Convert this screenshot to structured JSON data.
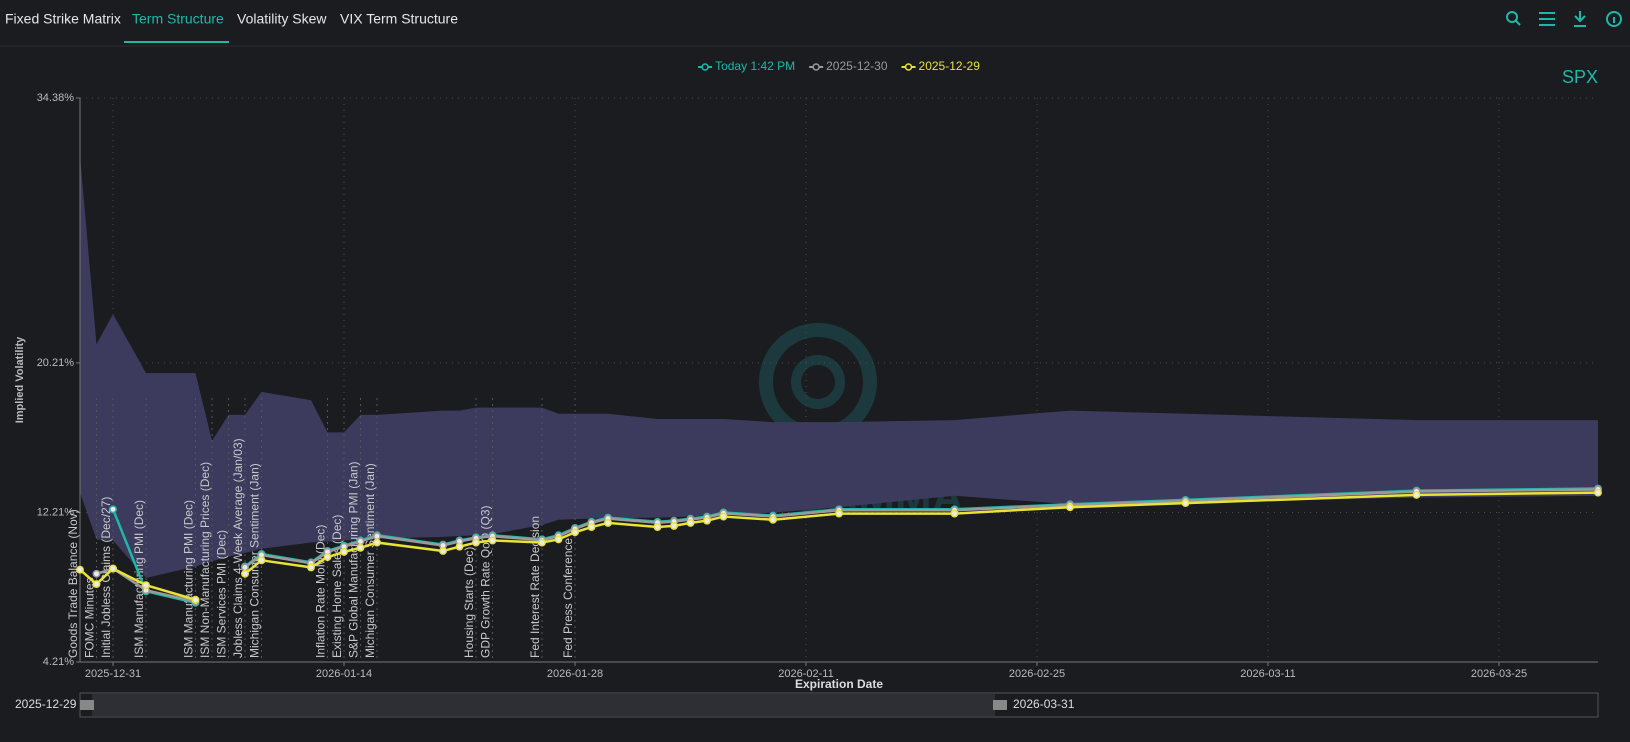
{
  "nav": {
    "tabs": [
      "Fixed Strike Matrix",
      "Term Structure",
      "Volatility Skew",
      "VIX Term Structure"
    ]
  },
  "chart_data": {
    "type": "line",
    "title": "SPX",
    "watermark": "SPOTGAMMA",
    "xlabel": "Expiration Date",
    "ylabel": "Implied Volatility",
    "legend": "top",
    "grid": true,
    "x": [
      "2025-12-29",
      "2025-12-30",
      "2025-12-31",
      "2026-01-02",
      "2026-01-05",
      "2026-01-06",
      "2026-01-07",
      "2026-01-08",
      "2026-01-09",
      "2026-01-12",
      "2026-01-13",
      "2026-01-14",
      "2026-01-15",
      "2026-01-16",
      "2026-01-20",
      "2026-01-21",
      "2026-01-22",
      "2026-01-23",
      "2026-01-26",
      "2026-01-27",
      "2026-01-28",
      "2026-01-29",
      "2026-01-30",
      "2026-02-02",
      "2026-02-03",
      "2026-02-04",
      "2026-02-05",
      "2026-02-06",
      "2026-02-09",
      "2026-02-13",
      "2026-02-20",
      "2026-02-27",
      "2026-03-06",
      "2026-03-20",
      "2026-03-31"
    ],
    "series": [
      {
        "name": "Today 1:42 PM",
        "color": "#1fb8a8",
        "values": [
          null,
          null,
          12.38,
          7.99,
          7.38,
          null,
          null,
          9.32,
          9.99,
          9.54,
          10.15,
          10.43,
          10.71,
          10.99,
          10.49,
          10.71,
          10.88,
          10.99,
          10.77,
          10.99,
          11.38,
          11.71,
          11.93,
          11.71,
          11.77,
          11.88,
          11.99,
          12.21,
          12.04,
          12.38,
          12.38,
          12.65,
          12.88,
          13.38,
          13.49
        ]
      },
      {
        "name": "2025-12-30",
        "color": "#9a9a9a",
        "values": [
          null,
          8.93,
          9.21,
          8.05,
          7.45,
          null,
          null,
          9.27,
          9.93,
          9.49,
          10.1,
          10.38,
          10.66,
          10.94,
          10.44,
          10.66,
          10.83,
          10.94,
          10.72,
          10.94,
          11.33,
          11.66,
          11.88,
          11.66,
          11.72,
          11.83,
          11.94,
          12.16,
          11.99,
          12.33,
          12.33,
          12.6,
          12.83,
          13.33,
          13.44
        ]
      },
      {
        "name": "2025-12-29",
        "color": "#e8e336",
        "values": [
          9.15,
          8.38,
          9.21,
          8.32,
          7.54,
          null,
          null,
          8.93,
          9.65,
          9.27,
          9.82,
          10.1,
          10.32,
          10.6,
          10.15,
          10.38,
          10.6,
          10.71,
          10.6,
          10.77,
          11.15,
          11.43,
          11.65,
          11.43,
          11.49,
          11.65,
          11.77,
          11.99,
          11.82,
          12.15,
          12.15,
          12.49,
          12.71,
          13.15,
          13.27
        ]
      }
    ],
    "range": {
      "color": "#3c3b5e",
      "high": [
        31.27,
        21.21,
        22.82,
        19.66,
        19.66,
        16.04,
        17.43,
        17.43,
        18.66,
        18.21,
        16.49,
        16.49,
        17.43,
        17.43,
        17.66,
        17.66,
        17.82,
        17.82,
        17.82,
        17.49,
        17.49,
        17.49,
        17.49,
        17.21,
        17.21,
        17.21,
        17.21,
        17.21,
        17.04,
        17.04,
        17.15,
        17.66,
        17.49,
        17.15,
        17.15
      ],
      "low": [
        13.27,
        10.77,
        10.71,
        8.71,
        9.32,
        9.6,
        9.85,
        10.05,
        10.27,
        10.6,
        10.65,
        10.7,
        10.75,
        10.82,
        10.9,
        10.95,
        11.0,
        11.05,
        11.54,
        11.82,
        11.85,
        11.88,
        11.9,
        11.93,
        11.96,
        12.0,
        12.05,
        12.1,
        12.2,
        12.49,
        13.1,
        12.65,
        12.75,
        13.0,
        13.1
      ]
    },
    "events": [
      {
        "x": "2025-12-29",
        "label": "Goods Trade Balance (Nov)"
      },
      {
        "x": "2025-12-30",
        "label": "FOMC Minutes"
      },
      {
        "x": "2025-12-31",
        "label": "Initial Jobless Claims (Dec/27)"
      },
      {
        "x": "2026-01-02",
        "label": "ISM Manufacturing PMI (Dec)"
      },
      {
        "x": "2026-01-05",
        "label": "ISM Manufacturing PMI (Dec)"
      },
      {
        "x": "2026-01-06",
        "label": "ISM Non-Manufacturing Prices (Dec)"
      },
      {
        "x": "2026-01-07",
        "label": "ISM Services PMI (Dec)"
      },
      {
        "x": "2026-01-08",
        "label": "Jobless Claims 4-Week Average (Jan/03)"
      },
      {
        "x": "2026-01-09",
        "label": "Michigan Consumer Sentiment (Jan)"
      },
      {
        "x": "2026-01-13",
        "label": "Inflation Rate MoM (Dec)"
      },
      {
        "x": "2026-01-14",
        "label": "Existing Home Sales (Dec)"
      },
      {
        "x": "2026-01-15",
        "label": "S&P Global Manufacturing PMI (Jan)"
      },
      {
        "x": "2026-01-16",
        "label": "Michigan Consumer Sentiment (Jan)"
      },
      {
        "x": "2026-01-22",
        "label": "Housing Starts (Dec)"
      },
      {
        "x": "2026-01-23",
        "label": "GDP Growth Rate QoQ (Q3)"
      },
      {
        "x": "2026-01-26",
        "label": "Fed Interest Rate Decision"
      },
      {
        "x": "2026-01-28",
        "label": "Fed Press Conference"
      }
    ],
    "xlim": [
      "2025-12-29",
      "2026-03-31"
    ],
    "xticks": [
      "2025-12-31",
      "2026-01-14",
      "2026-01-28",
      "2026-02-11",
      "2026-02-25",
      "2026-03-11",
      "2026-03-25"
    ],
    "ylim": [
      4.21,
      34.38
    ],
    "yticks": [
      {
        "value": 4.21,
        "label": "4.21%"
      },
      {
        "value": 12.21,
        "label": "12.21%"
      },
      {
        "value": 20.21,
        "label": "20.21%"
      },
      {
        "value": 34.38,
        "label": "34.38%"
      }
    ]
  }
}
